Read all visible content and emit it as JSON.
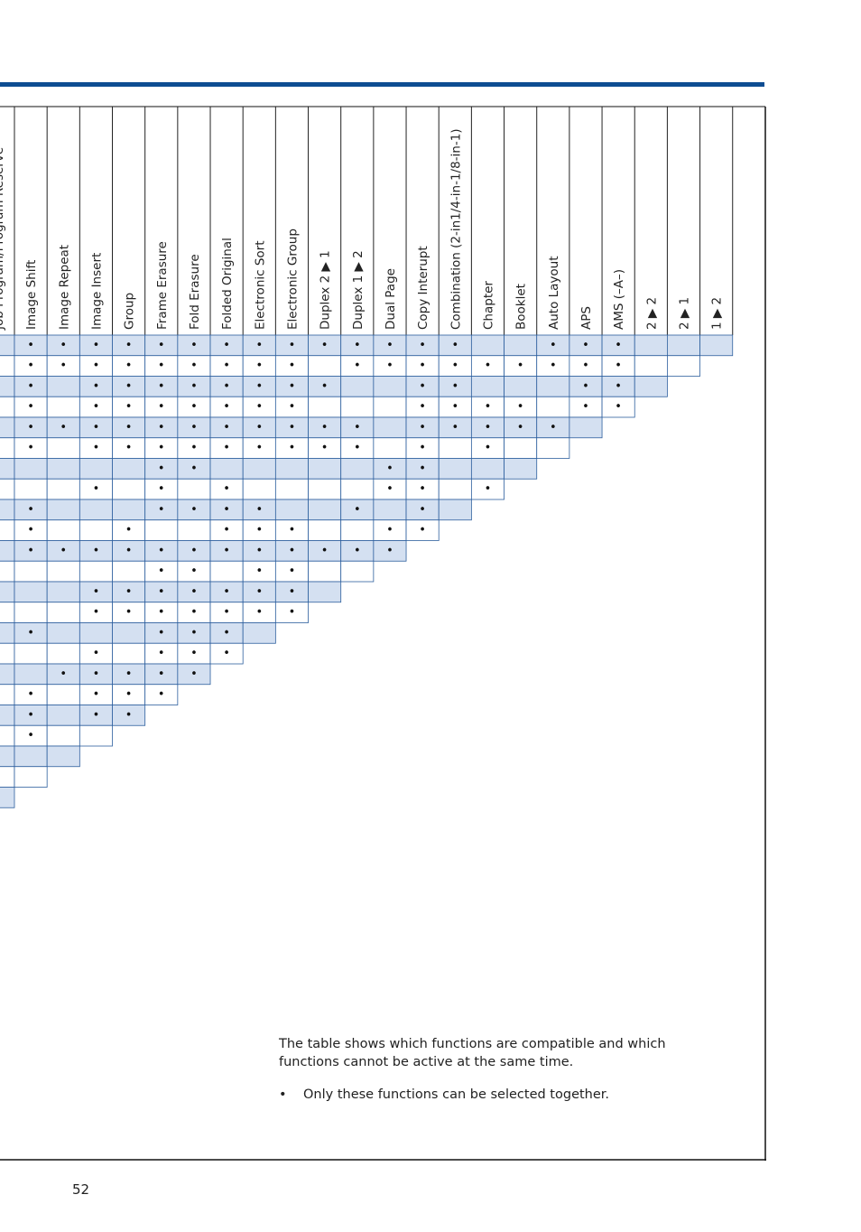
{
  "table": {
    "columns": [
      "Job Program/Program Reserve",
      "Image Shift",
      "Image Repeat",
      "Image Insert",
      "Group",
      "Frame Erasure",
      "Fold Erasure",
      "Folded Original",
      "Electronic Sort",
      "Electronic Group",
      "Duplex 2 ▶ 1",
      "Duplex 1 ▶ 2",
      "Dual Page",
      "Copy Interupt",
      "Combination (2-in1/4-in-1/8-in-1)",
      "Chapter",
      "Booklet",
      "Auto Layout",
      "APS",
      "AMS (–A–)",
      "2 ▶ 2",
      "2 ▶ 1",
      "1 ▶ 2"
    ],
    "rows": [
      [
        "•",
        "•",
        "•",
        "•",
        "•",
        "•",
        "•",
        "•",
        "•",
        "•",
        "•",
        "•",
        "•",
        "•",
        "•",
        null,
        null,
        "•",
        "•",
        "•",
        null,
        null,
        null
      ],
      [
        "•",
        "•",
        "•",
        "•",
        "•",
        "•",
        "•",
        "•",
        "•",
        "•",
        null,
        "•",
        "•",
        "•",
        "•",
        "•",
        "•",
        "•",
        "•",
        "•",
        null,
        null
      ],
      [
        null,
        "•",
        null,
        "•",
        "•",
        "•",
        "•",
        "•",
        "•",
        "•",
        "•",
        null,
        null,
        "•",
        "•",
        null,
        null,
        null,
        "•",
        "•",
        null
      ],
      [
        "•",
        "•",
        null,
        "•",
        "•",
        "•",
        "•",
        "•",
        "•",
        "•",
        null,
        null,
        null,
        "•",
        "•",
        "•",
        "•",
        null,
        "•",
        "•"
      ],
      [
        "•",
        "•",
        "•",
        "•",
        "•",
        "•",
        "•",
        "•",
        "•",
        "•",
        "•",
        "•",
        null,
        "•",
        "•",
        "•",
        "•",
        "•",
        null
      ],
      [
        "•",
        "•",
        null,
        "•",
        "•",
        "•",
        "•",
        "•",
        "•",
        "•",
        "•",
        "•",
        null,
        "•",
        null,
        "•",
        null,
        null
      ],
      [
        "•",
        null,
        null,
        null,
        null,
        "•",
        "•",
        null,
        null,
        null,
        null,
        null,
        "•",
        "•",
        null,
        null,
        null
      ],
      [
        "•",
        null,
        null,
        "•",
        null,
        "•",
        null,
        "•",
        null,
        null,
        null,
        null,
        "•",
        "•",
        null,
        "•"
      ],
      [
        "•",
        "•",
        null,
        null,
        null,
        "•",
        "•",
        "•",
        "•",
        null,
        null,
        "•",
        null,
        "•",
        null
      ],
      [
        "•",
        "•",
        null,
        null,
        "•",
        null,
        null,
        "•",
        "•",
        "•",
        null,
        null,
        "•",
        "•"
      ],
      [
        null,
        "•",
        "•",
        "•",
        "•",
        "•",
        "•",
        "•",
        "•",
        "•",
        "•",
        "•",
        "•"
      ],
      [
        "•",
        null,
        null,
        null,
        null,
        "•",
        "•",
        null,
        "•",
        "•",
        null,
        null
      ],
      [
        "•",
        null,
        null,
        "•",
        "•",
        "•",
        "•",
        "•",
        "•",
        "•",
        null
      ],
      [
        "•",
        null,
        null,
        "•",
        "•",
        "•",
        "•",
        "•",
        "•",
        "•"
      ],
      [
        "•",
        "•",
        null,
        null,
        null,
        "•",
        "•",
        "•",
        null
      ],
      [
        "•",
        null,
        null,
        "•",
        null,
        "•",
        "•",
        "•"
      ],
      [
        "•",
        null,
        "•",
        "•",
        "•",
        "•",
        "•"
      ],
      [
        "•",
        "•",
        null,
        "•",
        "•",
        "•"
      ],
      [
        "•",
        "•",
        null,
        "•",
        "•"
      ],
      [
        "•",
        "•",
        null,
        null
      ],
      [
        "•",
        null,
        null
      ],
      [
        null,
        null
      ],
      [
        "•"
      ]
    ]
  },
  "note": {
    "text": "The table shows which functions are compatible and which functions cannot be active at the same time.",
    "bullet": "•",
    "item": "Only these functions can be selected together."
  },
  "page_number": "52"
}
